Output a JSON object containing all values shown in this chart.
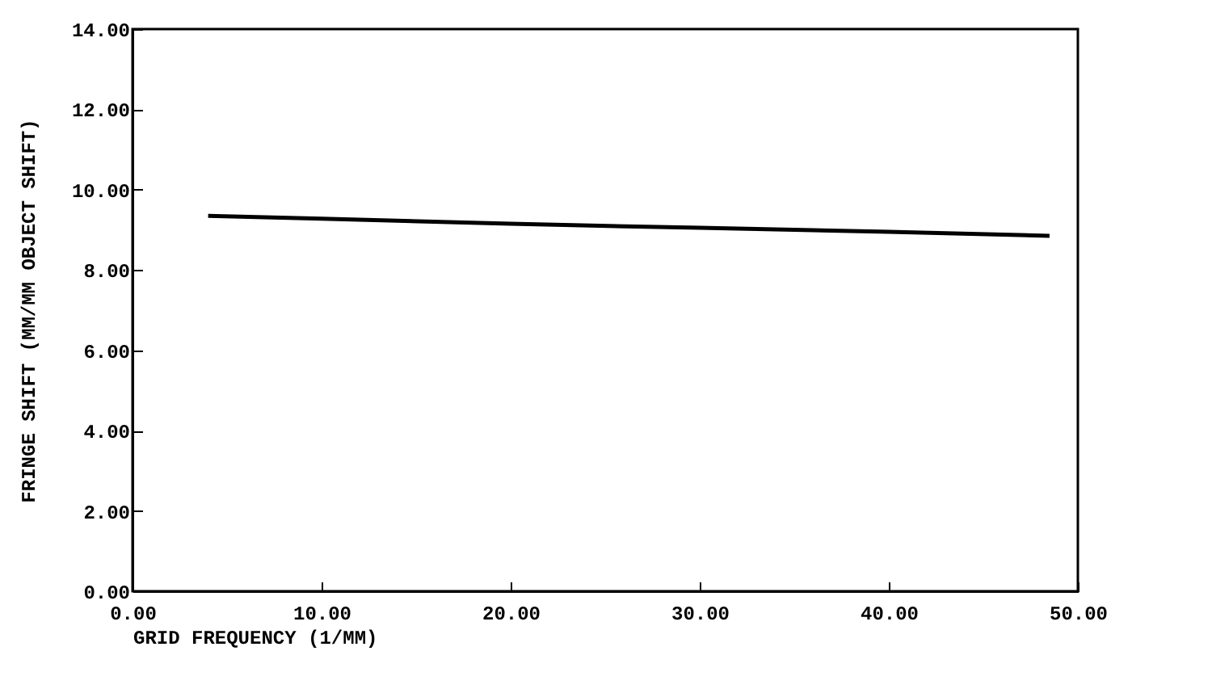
{
  "chart_data": {
    "type": "line",
    "xlabel": "GRID FREQUENCY (1/MM)",
    "ylabel": "FRINGE SHIFT (MM/MM OBJECT SHIFT)",
    "x": [
      4,
      10,
      20,
      30,
      40,
      48.5
    ],
    "series": [
      {
        "color": "#000000",
        "values": [
          9.35,
          9.28,
          9.15,
          9.05,
          8.95,
          8.85
        ]
      }
    ],
    "xlim": [
      0,
      50
    ],
    "ylim": [
      0,
      14
    ],
    "xticks": [
      {
        "value": 0,
        "label": "0.00"
      },
      {
        "value": 10,
        "label": "10.00"
      },
      {
        "value": 20,
        "label": "20.00"
      },
      {
        "value": 30,
        "label": "30.00"
      },
      {
        "value": 40,
        "label": "40.00"
      },
      {
        "value": 50,
        "label": "50.00"
      }
    ],
    "yticks": [
      {
        "value": 0,
        "label": "0.00"
      },
      {
        "value": 2,
        "label": "2.00"
      },
      {
        "value": 4,
        "label": "4.00"
      },
      {
        "value": 6,
        "label": "6.00"
      },
      {
        "value": 8,
        "label": "8.00"
      },
      {
        "value": 10,
        "label": "10.00"
      },
      {
        "value": 12,
        "label": "12.00"
      },
      {
        "value": 14,
        "label": "14.00"
      }
    ],
    "marker": "none",
    "line_style": "solid",
    "grid": false
  }
}
